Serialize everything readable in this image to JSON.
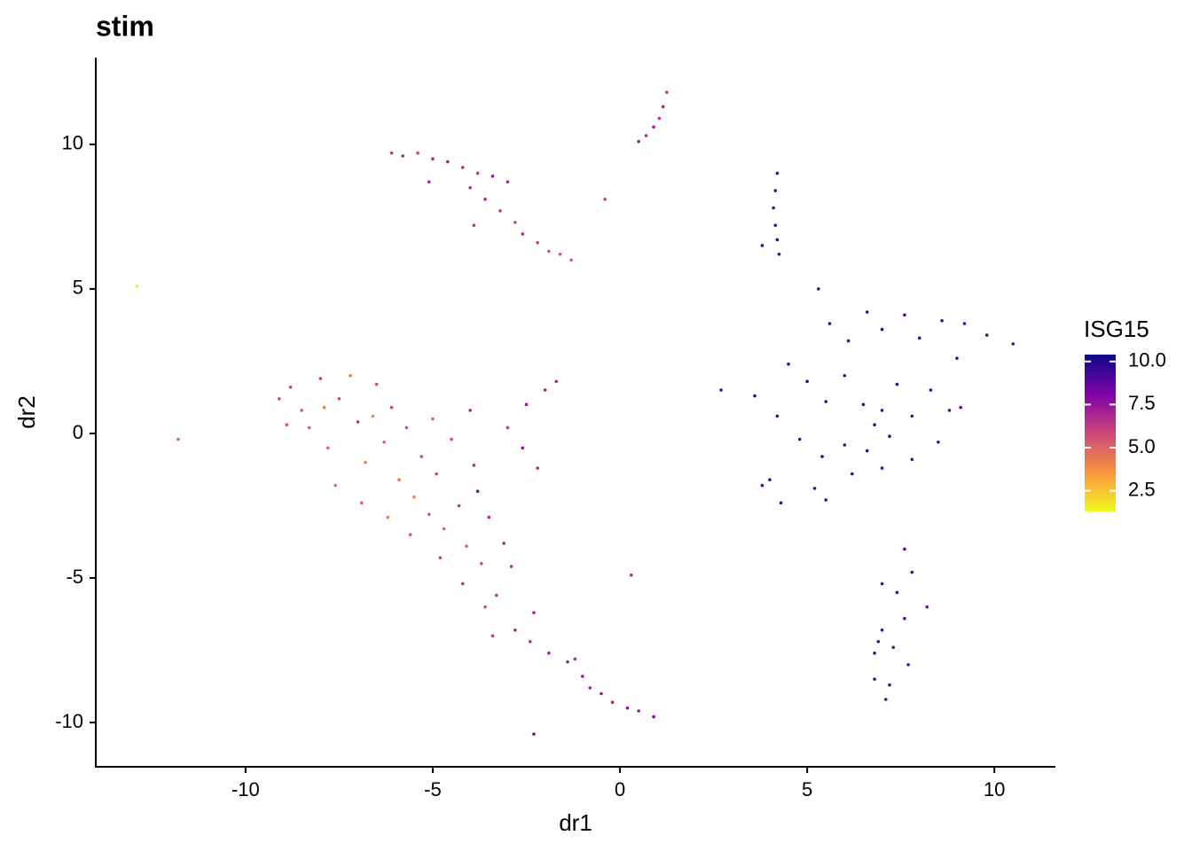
{
  "chart_data": {
    "type": "scatter",
    "title": "stim",
    "x_label": "dr1",
    "y_label": "dr2",
    "xlim": [
      -14.0,
      11.63
    ],
    "ylim": [
      -11.53,
      13.0
    ],
    "xticks": [
      -10,
      -5,
      0,
      5,
      10
    ],
    "yticks": [
      -10,
      -5,
      0,
      5,
      10
    ],
    "colorbar": {
      "title": "ISG15",
      "lim": [
        1.3,
        10.4
      ],
      "ticks": [
        2.5,
        {
          "value": 5,
          "label": "5.0"
        },
        7.5,
        {
          "value": 10,
          "label": "10.0"
        }
      ],
      "colors": [
        "#f0f921",
        "#f89540",
        "#cc4778",
        "#7e03a8",
        "#0d0887"
      ]
    },
    "x": [
      -9.1,
      -8.8,
      -8.5,
      -8.3,
      -8.0,
      -7.8,
      -7.5,
      -7.2,
      -7.0,
      -6.8,
      -6.5,
      -6.3,
      -6.1,
      -5.9,
      -5.7,
      -5.5,
      -5.3,
      -5.1,
      -4.9,
      -4.7,
      -4.5,
      -4.3,
      -4.1,
      -3.9,
      -3.7,
      -3.5,
      -3.3,
      -3.1,
      -2.9,
      -3.6,
      -3.4,
      -2.8,
      -7.6,
      -6.9,
      -6.2,
      -5.6,
      -4.8,
      -4.2,
      -8.9,
      -7.9,
      -6.6,
      -5.0,
      -4.0,
      -3.0,
      -2.5,
      -2.0,
      -1.7,
      -2.2,
      -2.6,
      -3.8,
      -6.1,
      -5.8,
      -5.4,
      -5.0,
      -4.6,
      -4.2,
      -3.8,
      -3.4,
      -3.0,
      -4.0,
      -3.6,
      -3.2,
      -2.8,
      -3.9,
      -2.6,
      -2.2,
      -1.9,
      -1.6,
      -1.3,
      -5.1,
      0.5,
      0.7,
      0.9,
      1.05,
      1.15,
      1.25,
      4.2,
      4.15,
      4.1,
      4.15,
      4.2,
      4.25,
      3.8,
      5.3,
      5.6,
      6.1,
      6.6,
      7.0,
      7.6,
      8.0,
      8.6,
      9.2,
      9.8,
      10.5,
      4.5,
      5.0,
      5.5,
      6.0,
      6.5,
      7.0,
      7.4,
      7.8,
      8.3,
      8.8,
      9.0,
      3.6,
      4.2,
      4.8,
      5.4,
      6.0,
      6.6,
      7.2,
      7.8,
      8.5,
      9.1,
      4.0,
      5.2,
      6.2,
      7.0,
      5.5,
      4.3,
      3.8,
      6.8,
      7.6,
      7.8,
      8.2,
      7.4,
      7.0,
      7.6,
      7.0,
      6.8,
      7.3,
      7.7,
      6.8,
      7.2,
      7.1,
      6.9,
      -2.3,
      -2.4,
      -1.9,
      -1.4,
      -1.0,
      -0.8,
      -0.5,
      -0.2,
      0.2,
      0.5,
      0.9,
      -1.2,
      -12.9,
      -11.8,
      2.7,
      0.3,
      -2.3,
      -0.4
    ],
    "values": [
      1.2,
      1.6,
      0.8,
      0.2,
      1.9,
      -0.5,
      1.2,
      2.0,
      0.4,
      -1.0,
      1.7,
      -0.3,
      0.9,
      -1.6,
      0.2,
      -2.2,
      -0.8,
      -2.8,
      -1.4,
      -3.3,
      -0.2,
      -2.5,
      -3.9,
      -1.1,
      -4.5,
      -2.9,
      -5.6,
      -3.8,
      -4.6,
      -6.0,
      -7.0,
      -6.8,
      -1.8,
      -2.4,
      -2.9,
      -3.5,
      -4.3,
      -5.2,
      0.3,
      0.9,
      0.6,
      0.5,
      0.8,
      0.2,
      1.0,
      1.5,
      1.8,
      -1.2,
      -0.5,
      -2.0,
      9.7,
      9.6,
      9.7,
      9.5,
      9.4,
      9.2,
      9.0,
      8.9,
      8.7,
      8.5,
      8.1,
      7.7,
      7.3,
      7.2,
      6.9,
      6.6,
      6.3,
      6.2,
      6.0,
      8.7,
      10.1,
      10.3,
      10.6,
      10.9,
      11.3,
      11.8,
      9.0,
      8.4,
      7.8,
      7.2,
      6.7,
      6.2,
      6.5,
      5.0,
      3.8,
      3.2,
      4.2,
      3.6,
      4.1,
      3.3,
      3.9,
      3.8,
      3.4,
      3.1,
      2.4,
      1.8,
      1.1,
      2.0,
      1.0,
      0.8,
      1.7,
      0.6,
      1.5,
      0.8,
      2.6,
      1.3,
      0.6,
      -0.2,
      -0.8,
      -0.4,
      -0.6,
      -0.1,
      -0.9,
      -0.3,
      0.9,
      -1.6,
      -1.9,
      -1.4,
      -1.2,
      -2.3,
      -2.4,
      -1.8,
      0.3,
      -4.0,
      -4.8,
      -6.0,
      -5.5,
      -5.2,
      -6.4,
      -6.8,
      -7.6,
      -7.4,
      -8.0,
      -8.5,
      -8.7,
      -9.2,
      -7.2,
      -6.2,
      -7.2,
      -7.6,
      -7.9,
      -8.4,
      -8.8,
      -9.0,
      -9.3,
      -9.5,
      -9.6,
      -9.8,
      -7.8,
      5.1,
      -0.2,
      1.5,
      -4.9,
      -10.4,
      8.1
    ],
    "color_values": [
      5.5,
      6.0,
      5.2,
      4.8,
      6.2,
      5.0,
      5.7,
      4.5,
      6.4,
      4.2,
      5.8,
      5.1,
      6.0,
      4.6,
      5.3,
      4.0,
      5.9,
      5.4,
      6.1,
      4.8,
      5.6,
      6.3,
      5.0,
      6.6,
      5.8,
      6.9,
      6.2,
      7.1,
      6.7,
      5.5,
      6.4,
      7.0,
      4.9,
      5.1,
      4.3,
      5.5,
      6.0,
      6.5,
      5.8,
      4.4,
      4.0,
      5.2,
      7.0,
      6.3,
      7.4,
      7.2,
      6.8,
      6.5,
      7.7,
      7.9,
      6.5,
      6.8,
      6.2,
      6.9,
      7.1,
      6.7,
      6.4,
      7.3,
      7.0,
      6.6,
      6.9,
      6.3,
      6.0,
      6.5,
      6.8,
      5.9,
      5.6,
      5.4,
      5.2,
      7.0,
      7.2,
      6.8,
      7.5,
      6.5,
      7.0,
      6.3,
      8.8,
      9.2,
      8.6,
      9.0,
      9.3,
      8.9,
      9.1,
      9.2,
      9.5,
      8.8,
      9.3,
      9.6,
      9.0,
      9.4,
      9.1,
      8.7,
      9.0,
      8.9,
      9.3,
      9.6,
      9.1,
      9.4,
      9.7,
      9.2,
      9.5,
      9.0,
      9.4,
      8.8,
      9.1,
      9.3,
      9.5,
      9.0,
      9.6,
      9.2,
      9.4,
      9.7,
      9.1,
      9.3,
      8.9,
      9.2,
      9.4,
      9.6,
      9.0,
      9.3,
      9.5,
      9.1,
      9.8,
      8.8,
      9.1,
      8.5,
      8.9,
      9.2,
      8.7,
      9.0,
      9.3,
      8.6,
      8.9,
      9.4,
      9.1,
      8.8,
      9.2,
      7.0,
      6.8,
      7.3,
      7.1,
      7.5,
      7.0,
      7.6,
      7.2,
      7.8,
      7.4,
      7.9,
      6.6,
      1.5,
      5.0,
      9.0,
      7.0,
      8.0,
      6.0
    ]
  }
}
